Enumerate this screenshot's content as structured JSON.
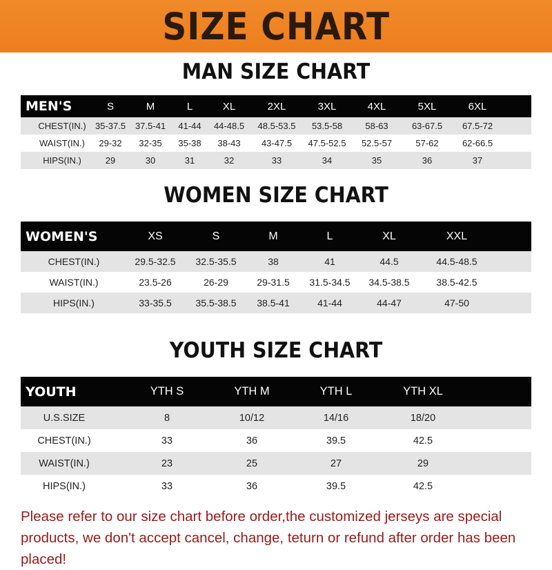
{
  "banner_title": "SIZE CHART",
  "men": {
    "title": "MAN SIZE CHART",
    "header": [
      "MEN'S",
      "S",
      "M",
      "L",
      "XL",
      "2XL",
      "3XL",
      "4XL",
      "5XL",
      "6XL"
    ],
    "rows": [
      [
        "CHEST(IN.)",
        "35-37.5",
        "37.5-41",
        "41-44",
        "44-48.5",
        "48.5-53.5",
        "53.5-58",
        "58-63",
        "63-67.5",
        "67.5-72"
      ],
      [
        "WAIST(IN.)",
        "29-32",
        "32-35",
        "35-38",
        "38-43",
        "43-47.5",
        "47.5-52.5",
        "52.5-57",
        "57-62",
        "62-66.5"
      ],
      [
        "HIPS(IN.)",
        "29",
        "30",
        "31",
        "32",
        "33",
        "34",
        "35",
        "36",
        "37"
      ]
    ]
  },
  "women": {
    "title": "WOMEN SIZE CHART",
    "header": [
      "WOMEN'S",
      "XS",
      "S",
      "M",
      "L",
      "XL",
      "XXL"
    ],
    "rows": [
      [
        "CHEST(IN.)",
        "29.5-32.5",
        "32.5-35.5",
        "38",
        "41",
        "44.5",
        "44.5-48.5"
      ],
      [
        "WAIST(IN.)",
        "23.5-26",
        "26-29",
        "29-31.5",
        "31.5-34.5",
        "34.5-38.5",
        "38.5-42.5"
      ],
      [
        "HIPS(IN.)",
        "33-35.5",
        "35.5-38.5",
        "38.5-41",
        "41-44",
        "44-47",
        "47-50"
      ]
    ]
  },
  "youth": {
    "title": "YOUTH SIZE CHART",
    "header": [
      "YOUTH",
      "YTH S",
      "YTH M",
      "YTH L",
      "YTH XL"
    ],
    "rows": [
      [
        "U.S.SIZE",
        "8",
        "10/12",
        "14/16",
        "18/20"
      ],
      [
        "CHEST(IN.)",
        "33",
        "36",
        "39.5",
        "42.5"
      ],
      [
        "WAIST(IN.)",
        "23",
        "25",
        "27",
        "29"
      ],
      [
        "HIPS(IN.)",
        "33",
        "36",
        "39.5",
        "42.5"
      ]
    ]
  },
  "note": "Please refer to our size chart before order,the customized jerseys are special products, we don't accept cancel, change, teturn or refund after order has been placed!",
  "colors": {
    "banner": "#ef8424",
    "header_row": "#050505",
    "stripe": "#e4e4e4",
    "note": "#9a1a1a"
  }
}
